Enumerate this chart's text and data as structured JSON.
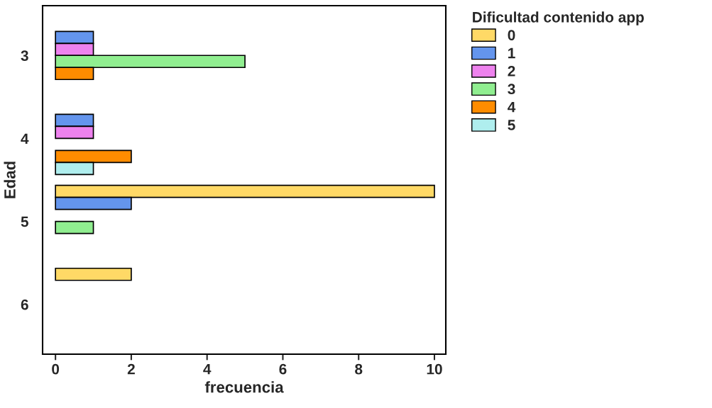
{
  "chart_data": {
    "type": "bar",
    "orientation": "horizontal",
    "xlabel": "frecuencia",
    "ylabel": "Edad",
    "legend_title": "Dificultad contenido app",
    "categories": [
      "3",
      "4",
      "5",
      "6"
    ],
    "series": [
      {
        "name": "0",
        "color": "#ffd966",
        "values": [
          0,
          0,
          10,
          2
        ]
      },
      {
        "name": "1",
        "color": "#6495ed",
        "values": [
          1,
          1,
          2,
          0
        ]
      },
      {
        "name": "2",
        "color": "#ee82ee",
        "values": [
          1,
          1,
          0,
          0
        ]
      },
      {
        "name": "3",
        "color": "#90ee90",
        "values": [
          5,
          0,
          1,
          0
        ]
      },
      {
        "name": "4",
        "color": "#ff8c00",
        "values": [
          1,
          2,
          0,
          0
        ]
      },
      {
        "name": "5",
        "color": "#afeeee",
        "values": [
          0,
          1,
          0,
          0
        ]
      }
    ],
    "xlim": [
      -0.34,
      10.3
    ],
    "xticks": [
      0,
      2,
      4,
      6,
      8,
      10
    ],
    "grid": false,
    "legend": "top right"
  }
}
